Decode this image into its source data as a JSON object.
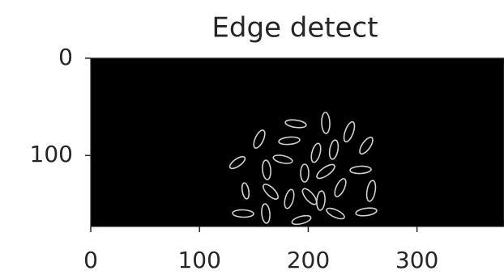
{
  "chart_data": {
    "type": "image",
    "title": "Edge detect",
    "xlim": [
      0,
      380
    ],
    "ylim": [
      173,
      0
    ],
    "xticks": [
      0,
      100,
      200,
      300
    ],
    "yticks": [
      0,
      100
    ]
  }
}
